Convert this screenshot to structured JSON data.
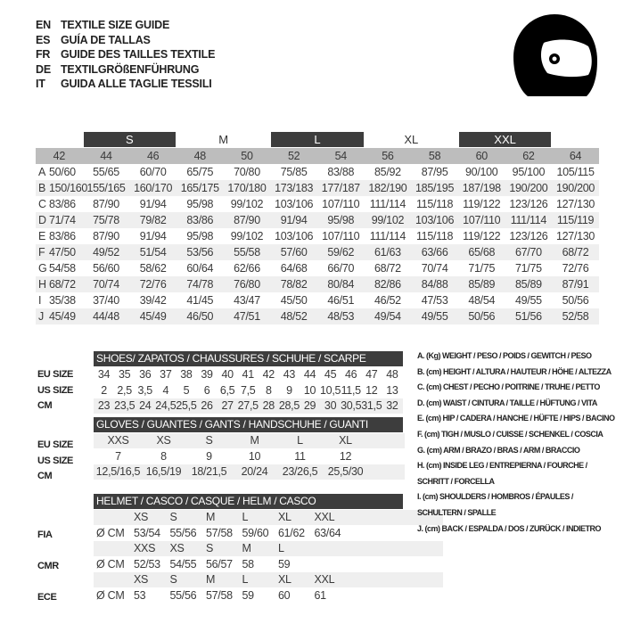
{
  "titles": [
    {
      "lang": "EN",
      "text": "TEXTILE SIZE GUIDE"
    },
    {
      "lang": "ES",
      "text": "GUÍA DE TALLAS"
    },
    {
      "lang": "FR",
      "text": "GUIDE DES TAILLES TEXTILE"
    },
    {
      "lang": "DE",
      "text": "TEXTILGRÖßENFÜHRUNG"
    },
    {
      "lang": "IT",
      "text": "GUIDA ALLE TAGLIE TESSILI"
    }
  ],
  "icon": "helmet-icon",
  "textile": {
    "groups": [
      {
        "label": "S",
        "dark": true
      },
      {
        "label": "M",
        "dark": false
      },
      {
        "label": "L",
        "dark": true
      },
      {
        "label": "XL",
        "dark": false
      },
      {
        "label": "XXL",
        "dark": true
      }
    ],
    "sizes": [
      "42",
      "44",
      "46",
      "48",
      "50",
      "52",
      "54",
      "56",
      "58",
      "60",
      "62",
      "64"
    ],
    "rows": [
      {
        "letter": "A",
        "values": [
          "50/60",
          "55/65",
          "60/70",
          "65/75",
          "70/80",
          "75/85",
          "83/88",
          "85/92",
          "87/95",
          "90/100",
          "95/100",
          "105/115"
        ]
      },
      {
        "letter": "B",
        "values": [
          "150/160",
          "155/165",
          "160/170",
          "165/175",
          "170/180",
          "173/183",
          "177/187",
          "182/190",
          "185/195",
          "187/198",
          "190/200",
          "190/200"
        ]
      },
      {
        "letter": "C",
        "values": [
          "83/86",
          "87/90",
          "91/94",
          "95/98",
          "99/102",
          "103/106",
          "107/110",
          "111/114",
          "115/118",
          "119/122",
          "123/126",
          "127/130"
        ]
      },
      {
        "letter": "D",
        "values": [
          "71/74",
          "75/78",
          "79/82",
          "83/86",
          "87/90",
          "91/94",
          "95/98",
          "99/102",
          "103/106",
          "107/110",
          "111/114",
          "115/119"
        ]
      },
      {
        "letter": "E",
        "values": [
          "83/86",
          "87/90",
          "91/94",
          "95/98",
          "99/102",
          "103/106",
          "107/110",
          "111/114",
          "115/118",
          "119/122",
          "123/126",
          "127/130"
        ]
      },
      {
        "letter": "F",
        "values": [
          "47/50",
          "49/52",
          "51/54",
          "53/56",
          "55/58",
          "57/60",
          "59/62",
          "61/63",
          "63/66",
          "65/68",
          "67/70",
          "68/72"
        ]
      },
      {
        "letter": "G",
        "values": [
          "54/58",
          "56/60",
          "58/62",
          "60/64",
          "62/66",
          "64/68",
          "66/70",
          "68/72",
          "70/74",
          "71/75",
          "71/75",
          "72/76"
        ]
      },
      {
        "letter": "H",
        "values": [
          "68/72",
          "70/74",
          "72/76",
          "74/78",
          "76/80",
          "78/82",
          "80/84",
          "82/86",
          "84/88",
          "85/89",
          "85/89",
          "87/91"
        ]
      },
      {
        "letter": "I",
        "values": [
          "35/38",
          "37/40",
          "39/42",
          "41/45",
          "43/47",
          "45/50",
          "46/51",
          "46/52",
          "47/53",
          "48/54",
          "49/55",
          "50/56"
        ]
      },
      {
        "letter": "J",
        "values": [
          "45/49",
          "44/48",
          "45/49",
          "46/50",
          "47/51",
          "48/52",
          "48/53",
          "49/54",
          "49/55",
          "50/56",
          "51/56",
          "52/58"
        ]
      }
    ]
  },
  "shoes": {
    "title": "SHOES/ ZAPATOS / CHAUSSURES / SCHUHE / SCARPE",
    "rows": [
      {
        "label": "EU SIZE",
        "values": [
          "34",
          "35",
          "36",
          "37",
          "38",
          "39",
          "40",
          "41",
          "42",
          "43",
          "44",
          "45",
          "46",
          "47",
          "48"
        ]
      },
      {
        "label": "US SIZE",
        "values": [
          "2",
          "2,5",
          "3,5",
          "4",
          "5",
          "6",
          "6,5",
          "7,5",
          "8",
          "9",
          "10",
          "10,5",
          "11,5",
          "12",
          "13"
        ]
      },
      {
        "label": "CM",
        "values": [
          "23",
          "23,5",
          "24",
          "24,5",
          "25,5",
          "26",
          "27",
          "27,5",
          "28",
          "28,5",
          "29",
          "30",
          "30,5",
          "31,5",
          "32"
        ]
      }
    ]
  },
  "gloves": {
    "title": "GLOVES / GUANTES / GANTS / HANDSCHUHE / GUANTI",
    "rows": [
      {
        "label": "EU SIZE",
        "values": [
          "XXS",
          "XS",
          "S",
          "M",
          "L",
          "XL"
        ]
      },
      {
        "label": "US SIZE",
        "values": [
          "7",
          "8",
          "9",
          "10",
          "11",
          "12"
        ]
      },
      {
        "label": "CM",
        "values": [
          "12,5/16,5",
          "16,5/19",
          "18/21,5",
          "20/24",
          "23/26,5",
          "25,5/30"
        ]
      }
    ]
  },
  "helmet": {
    "title": "HELMET / CASCO / CASQUE / HELM / CASCO",
    "standards": [
      {
        "label": "FIA",
        "unit": "Ø CM",
        "sizes": [
          "XS",
          "S",
          "M",
          "L",
          "XL",
          "XXL"
        ],
        "values": [
          "53/54",
          "55/56",
          "57/58",
          "59/60",
          "61/62",
          "63/64"
        ]
      },
      {
        "label": "CMR",
        "unit": "Ø CM",
        "sizes": [
          "XXS",
          "XS",
          "S",
          "M",
          "L"
        ],
        "values": [
          "52/53",
          "54/55",
          "56/57",
          "58",
          "59"
        ]
      },
      {
        "label": "ECE",
        "unit": "Ø CM",
        "sizes": [
          "XS",
          "S",
          "M",
          "L",
          "XL",
          "XXL"
        ],
        "values": [
          "53",
          "55/56",
          "57/58",
          "59",
          "60",
          "61"
        ]
      }
    ]
  },
  "legend": [
    "A. (Kg) WEIGHT / PESO / POIDS / GEWITCH / PESO",
    "B. (cm) HEIGHT / ALTURA / HAUTEUR / HÖHE / ALTEZZA",
    "C. (cm) CHEST / PECHO / POITRINE / TRUHE / PETTO",
    "D. (cm) WAIST / CINTURA / TAILLE / HÜFTUNG / VITA",
    "E. (cm) HIP / CADERA / HANCHE / HÜFTE / HIPS /  BACINO",
    "F.  (cm) TIGH / MUSLO / CUISSE / SCHENKEL / COSCIA",
    "G. (cm) ARM  / BRAZO / BRAS / ARM / BRACCIO",
    "H. (cm) INSIDE LEG / ENTREPIERNA / FOURCHE /",
    "SCHRITT / FORCELLA",
    "I.  (cm) SHOULDERS / HOMBROS / ÉPAULES /",
    "SCHULTERN / SPALLE",
    "J. (cm) BACK / ESPALDA / DOS / ZURÜCK / INDIETRO"
  ]
}
